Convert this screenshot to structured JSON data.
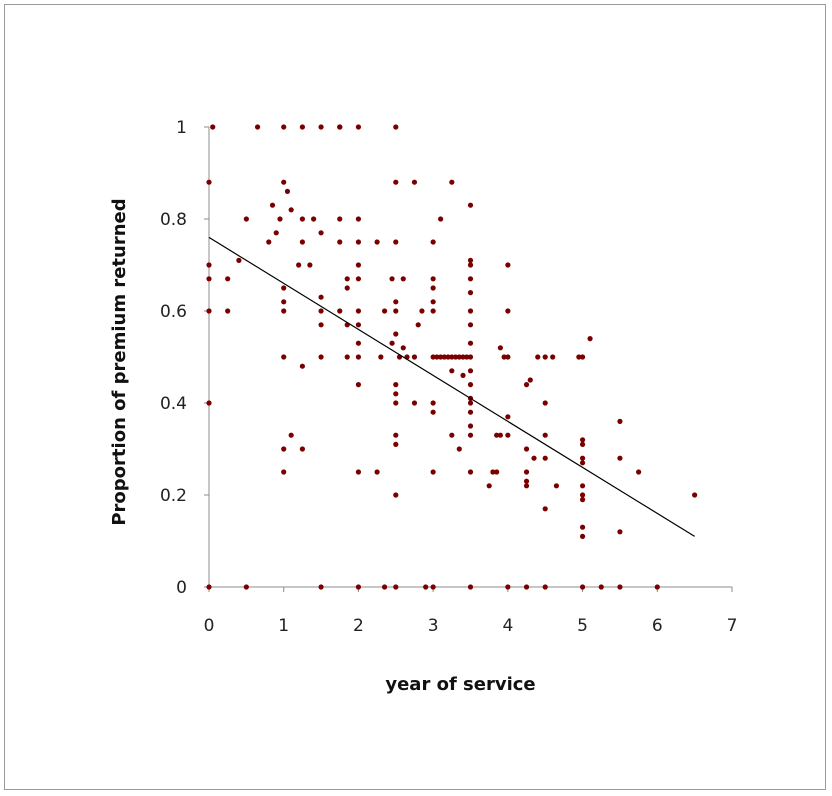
{
  "chart_data": {
    "type": "scatter",
    "xlabel": "year of service",
    "ylabel": "Proportion of premium returned",
    "xlim": [
      0,
      7
    ],
    "ylim": [
      0,
      1
    ],
    "x_ticks": [
      "0",
      "1",
      "2",
      "3",
      "4",
      "5",
      "6",
      "7"
    ],
    "y_ticks": [
      "0",
      "0.2",
      "0.4",
      "0.6",
      "0.8",
      "1"
    ],
    "grid": false,
    "legend": "none",
    "point_color": "#7a0000",
    "trendline": {
      "x": [
        0,
        6.5
      ],
      "y": [
        0.76,
        0.11
      ],
      "color": "#000000"
    },
    "points": [
      [
        0.05,
        1
      ],
      [
        0.65,
        1
      ],
      [
        1,
        1
      ],
      [
        1.25,
        1
      ],
      [
        1.5,
        1
      ],
      [
        1.75,
        1
      ],
      [
        1.75,
        1
      ],
      [
        2,
        1
      ],
      [
        2.5,
        1
      ],
      [
        0,
        0.88
      ],
      [
        1,
        0.88
      ],
      [
        2.5,
        0.88
      ],
      [
        2.75,
        0.88
      ],
      [
        3.25,
        0.88
      ],
      [
        0.5,
        0.8
      ],
      [
        0.85,
        0.83
      ],
      [
        1.05,
        0.86
      ],
      [
        1.1,
        0.82
      ],
      [
        0.95,
        0.8
      ],
      [
        1.25,
        0.8
      ],
      [
        1.4,
        0.8
      ],
      [
        1.75,
        0.8
      ],
      [
        2,
        0.8
      ],
      [
        3.1,
        0.8
      ],
      [
        3.5,
        0.83
      ],
      [
        0.8,
        0.75
      ],
      [
        0.9,
        0.77
      ],
      [
        1.25,
        0.75
      ],
      [
        1.5,
        0.77
      ],
      [
        1.75,
        0.75
      ],
      [
        2,
        0.75
      ],
      [
        2.25,
        0.75
      ],
      [
        2.5,
        0.75
      ],
      [
        3,
        0.75
      ],
      [
        0,
        0.7
      ],
      [
        0.4,
        0.71
      ],
      [
        1.2,
        0.7
      ],
      [
        1.35,
        0.7
      ],
      [
        2,
        0.7
      ],
      [
        3.5,
        0.71
      ],
      [
        3.5,
        0.7
      ],
      [
        4,
        0.7
      ],
      [
        0,
        0.67
      ],
      [
        0.25,
        0.67
      ],
      [
        1,
        0.65
      ],
      [
        1.85,
        0.67
      ],
      [
        2,
        0.67
      ],
      [
        2.45,
        0.67
      ],
      [
        2.6,
        0.67
      ],
      [
        3,
        0.67
      ],
      [
        3,
        0.65
      ],
      [
        3.5,
        0.67
      ],
      [
        1,
        0.62
      ],
      [
        1.5,
        0.63
      ],
      [
        1.85,
        0.65
      ],
      [
        2.5,
        0.62
      ],
      [
        3,
        0.62
      ],
      [
        3.5,
        0.64
      ],
      [
        0,
        0.6
      ],
      [
        0.25,
        0.6
      ],
      [
        1,
        0.6
      ],
      [
        1.5,
        0.6
      ],
      [
        1.75,
        0.6
      ],
      [
        2,
        0.6
      ],
      [
        2.35,
        0.6
      ],
      [
        2.5,
        0.6
      ],
      [
        2.85,
        0.6
      ],
      [
        3,
        0.6
      ],
      [
        3.5,
        0.6
      ],
      [
        4,
        0.6
      ],
      [
        1.5,
        0.57
      ],
      [
        1.85,
        0.57
      ],
      [
        2,
        0.57
      ],
      [
        2.5,
        0.55
      ],
      [
        2.8,
        0.57
      ],
      [
        3.5,
        0.57
      ],
      [
        2,
        0.53
      ],
      [
        2.45,
        0.53
      ],
      [
        2.6,
        0.52
      ],
      [
        3.5,
        0.53
      ],
      [
        3.9,
        0.52
      ],
      [
        5.1,
        0.54
      ],
      [
        1,
        0.5
      ],
      [
        1.5,
        0.5
      ],
      [
        1.85,
        0.5
      ],
      [
        2,
        0.5
      ],
      [
        2.3,
        0.5
      ],
      [
        2.55,
        0.5
      ],
      [
        2.65,
        0.5
      ],
      [
        2.75,
        0.5
      ],
      [
        3,
        0.5
      ],
      [
        3.05,
        0.5
      ],
      [
        3.1,
        0.5
      ],
      [
        3.15,
        0.5
      ],
      [
        3.2,
        0.5
      ],
      [
        3.25,
        0.5
      ],
      [
        3.3,
        0.5
      ],
      [
        3.35,
        0.5
      ],
      [
        3.4,
        0.5
      ],
      [
        3.45,
        0.5
      ],
      [
        3.5,
        0.5
      ],
      [
        3.95,
        0.5
      ],
      [
        4,
        0.5
      ],
      [
        4.4,
        0.5
      ],
      [
        4.5,
        0.5
      ],
      [
        4.6,
        0.5
      ],
      [
        4.95,
        0.5
      ],
      [
        5,
        0.5
      ],
      [
        1.25,
        0.48
      ],
      [
        3.25,
        0.47
      ],
      [
        3.4,
        0.46
      ],
      [
        3.5,
        0.47
      ],
      [
        2,
        0.44
      ],
      [
        2.5,
        0.44
      ],
      [
        2.5,
        0.42
      ],
      [
        3.5,
        0.44
      ],
      [
        4.25,
        0.44
      ],
      [
        4.3,
        0.45
      ],
      [
        0,
        0.4
      ],
      [
        2.5,
        0.4
      ],
      [
        2.75,
        0.4
      ],
      [
        3,
        0.4
      ],
      [
        3.5,
        0.4
      ],
      [
        3.5,
        0.38
      ],
      [
        3.5,
        0.41
      ],
      [
        4.5,
        0.4
      ],
      [
        3,
        0.38
      ],
      [
        4,
        0.37
      ],
      [
        3.5,
        0.35
      ],
      [
        1.1,
        0.33
      ],
      [
        2.5,
        0.33
      ],
      [
        3.25,
        0.33
      ],
      [
        3.5,
        0.33
      ],
      [
        3.85,
        0.33
      ],
      [
        3.9,
        0.33
      ],
      [
        4,
        0.33
      ],
      [
        4.5,
        0.33
      ],
      [
        5,
        0.32
      ],
      [
        5,
        0.31
      ],
      [
        5.5,
        0.36
      ],
      [
        1,
        0.3
      ],
      [
        1.25,
        0.3
      ],
      [
        2.5,
        0.31
      ],
      [
        3.35,
        0.3
      ],
      [
        4.25,
        0.3
      ],
      [
        4.35,
        0.28
      ],
      [
        4.5,
        0.28
      ],
      [
        5,
        0.28
      ],
      [
        5,
        0.27
      ],
      [
        5.5,
        0.28
      ],
      [
        1,
        0.25
      ],
      [
        2,
        0.25
      ],
      [
        2.25,
        0.25
      ],
      [
        3,
        0.25
      ],
      [
        3.5,
        0.25
      ],
      [
        3.8,
        0.25
      ],
      [
        3.85,
        0.25
      ],
      [
        4.25,
        0.25
      ],
      [
        4.25,
        0.23
      ],
      [
        5.75,
        0.25
      ],
      [
        3.75,
        0.22
      ],
      [
        4.25,
        0.22
      ],
      [
        4.65,
        0.22
      ],
      [
        5,
        0.22
      ],
      [
        5,
        0.2
      ],
      [
        5,
        0.19
      ],
      [
        2.5,
        0.2
      ],
      [
        4.5,
        0.17
      ],
      [
        6.5,
        0.2
      ],
      [
        5,
        0.13
      ],
      [
        5,
        0.11
      ],
      [
        5.5,
        0.12
      ],
      [
        0,
        0
      ],
      [
        0.5,
        0
      ],
      [
        1.5,
        0
      ],
      [
        2,
        0
      ],
      [
        2.35,
        0
      ],
      [
        2.5,
        0
      ],
      [
        2.9,
        0
      ],
      [
        3,
        0
      ],
      [
        3.5,
        0
      ],
      [
        4,
        0
      ],
      [
        4.25,
        0
      ],
      [
        4.5,
        0
      ],
      [
        5,
        0
      ],
      [
        5.25,
        0
      ],
      [
        5.5,
        0
      ],
      [
        6,
        0
      ]
    ]
  }
}
